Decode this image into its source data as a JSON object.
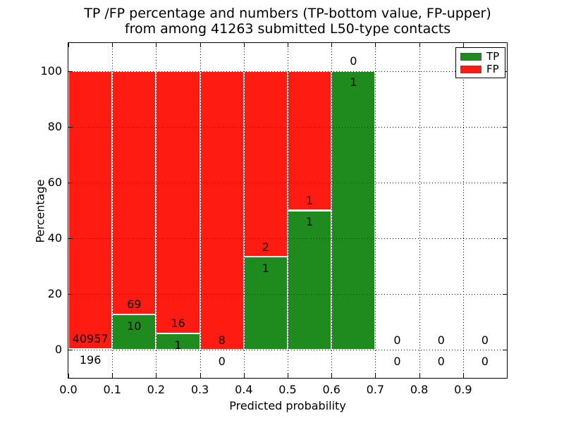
{
  "title": {
    "line1": "TP /FP percentage and numbers (TP-bottom value, FP-upper)",
    "line2": "from among 41263 submitted L50-type contacts"
  },
  "chart_data": {
    "type": "bar",
    "stacked": true,
    "title": "TP /FP percentage and numbers (TP-bottom value, FP-upper) from among 41263 submitted L50-type contacts",
    "xlabel": "Predicted probability",
    "ylabel": "Percentage",
    "total_submitted_contacts": 41263,
    "xlim": [
      0.0,
      1.0
    ],
    "ylim": [
      -10,
      110
    ],
    "grid": true,
    "bin_width": 0.1,
    "x_ticks": [
      0.0,
      0.1,
      0.2,
      0.3,
      0.4,
      0.5,
      0.6,
      0.7,
      0.8,
      0.9
    ],
    "x_tick_labels": [
      "0.0",
      "0.1",
      "0.2",
      "0.3",
      "0.4",
      "0.5",
      "0.6",
      "0.7",
      "0.8",
      "0.9"
    ],
    "y_ticks": [
      0,
      20,
      40,
      60,
      80,
      100
    ],
    "y_tick_labels": [
      "0",
      "20",
      "40",
      "60",
      "80",
      "100"
    ],
    "bins": [
      {
        "x0": 0.0,
        "x1": 0.1,
        "tp": 196,
        "fp": 40957,
        "tp_pct": 0.48,
        "fp_pct": 99.52
      },
      {
        "x0": 0.1,
        "x1": 0.2,
        "tp": 10,
        "fp": 69,
        "tp_pct": 12.66,
        "fp_pct": 87.34
      },
      {
        "x0": 0.2,
        "x1": 0.3,
        "tp": 1,
        "fp": 16,
        "tp_pct": 5.88,
        "fp_pct": 94.12
      },
      {
        "x0": 0.3,
        "x1": 0.4,
        "tp": 0,
        "fp": 8,
        "tp_pct": 0.0,
        "fp_pct": 100.0
      },
      {
        "x0": 0.4,
        "x1": 0.5,
        "tp": 1,
        "fp": 2,
        "tp_pct": 33.33,
        "fp_pct": 66.67
      },
      {
        "x0": 0.5,
        "x1": 0.6,
        "tp": 1,
        "fp": 1,
        "tp_pct": 50.0,
        "fp_pct": 50.0
      },
      {
        "x0": 0.6,
        "x1": 0.7,
        "tp": 1,
        "fp": 0,
        "tp_pct": 100.0,
        "fp_pct": 0.0
      },
      {
        "x0": 0.7,
        "x1": 0.8,
        "tp": 0,
        "fp": 0,
        "tp_pct": 0.0,
        "fp_pct": 0.0
      },
      {
        "x0": 0.8,
        "x1": 0.9,
        "tp": 0,
        "fp": 0,
        "tp_pct": 0.0,
        "fp_pct": 0.0
      },
      {
        "x0": 0.9,
        "x1": 1.0,
        "tp": 0,
        "fp": 0,
        "tp_pct": 0.0,
        "fp_pct": 0.0
      }
    ],
    "legend": {
      "position": "upper right",
      "entries": [
        {
          "label": "TP",
          "color": "#1f8b1f"
        },
        {
          "label": "FP",
          "color": "#fe1b12"
        }
      ]
    },
    "colors": {
      "tp": "#1f8b1f",
      "fp": "#fe1b12",
      "bar_edge": "#ffffff",
      "grid": "#000000"
    }
  },
  "axes": {
    "xlabel": "Predicted probability",
    "ylabel": "Percentage"
  },
  "legend": {
    "tp_label": "TP",
    "fp_label": "FP"
  }
}
